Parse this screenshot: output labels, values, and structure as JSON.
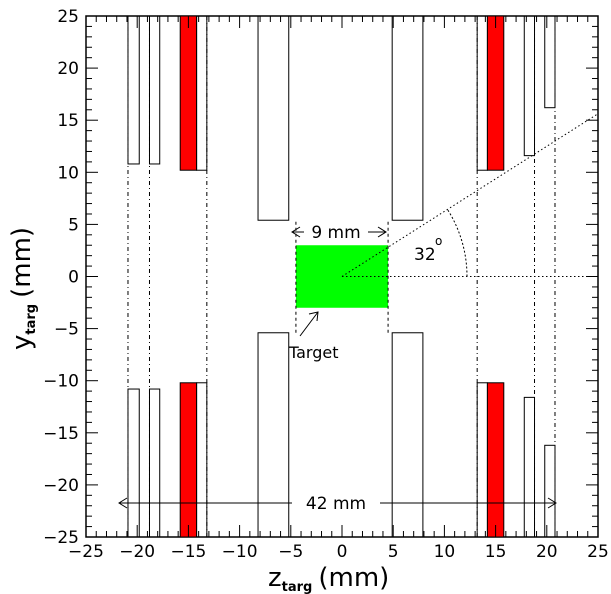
{
  "figure": {
    "x_axis_main": "z",
    "x_axis_sub": "targ",
    "x_axis_unit": "(mm)",
    "y_axis_main": "y",
    "y_axis_sub": "targ",
    "y_axis_unit": "(mm)",
    "x_ticks": [
      "−25",
      "−20",
      "−15",
      "−10",
      "−5",
      "0",
      "5",
      "10",
      "15",
      "20",
      "25"
    ],
    "y_ticks": [
      "25",
      "20",
      "15",
      "10",
      "5",
      "0",
      "−5",
      "−10",
      "−15",
      "−20",
      "−25"
    ],
    "x_range": [
      -25,
      25
    ],
    "y_range": [
      -25,
      25
    ]
  },
  "annotations": {
    "target_label": "Target",
    "width_label": "9 mm",
    "span_label": "42 mm",
    "angle_label": "32",
    "angle_degree": "o"
  },
  "colors": {
    "red_plate": "#ff0000",
    "target": "#00ff00",
    "outline": "#000000"
  },
  "chart_data": {
    "type": "diagram",
    "plates": [
      {
        "z0": -20.9,
        "z1": -19.8,
        "y_inner": 10.8,
        "fill": "none"
      },
      {
        "z0": -18.8,
        "z1": -17.8,
        "y_inner": 10.8,
        "fill": "none"
      },
      {
        "z0": -15.8,
        "z1": -14.2,
        "y_inner": 10.2,
        "fill": "red"
      },
      {
        "z0": -14.2,
        "z1": -13.2,
        "y_inner": 10.2,
        "fill": "none"
      },
      {
        "z0": -8.2,
        "z1": -5.2,
        "y_inner": 5.4,
        "fill": "none"
      },
      {
        "z0": 4.9,
        "z1": 7.9,
        "y_inner": 5.4,
        "fill": "none"
      },
      {
        "z0": 13.2,
        "z1": 14.2,
        "y_inner": 10.2,
        "fill": "none"
      },
      {
        "z0": 14.2,
        "z1": 15.8,
        "y_inner": 10.2,
        "fill": "red"
      },
      {
        "z0": 17.8,
        "z1": 18.8,
        "y_inner": 11.6,
        "fill": "none"
      },
      {
        "z0": 19.8,
        "z1": 20.8,
        "y_inner": 16.2,
        "fill": "none"
      }
    ],
    "target": {
      "z0": -4.5,
      "z1": 4.5,
      "y0": -3,
      "y1": 3
    },
    "angle_deg": 32,
    "dashdot_lines_z": [
      -20.9,
      -18.8,
      -13.2,
      13.2,
      18.8,
      20.8
    ],
    "dashed_lines_z": [
      -4.5,
      4.5
    ]
  }
}
